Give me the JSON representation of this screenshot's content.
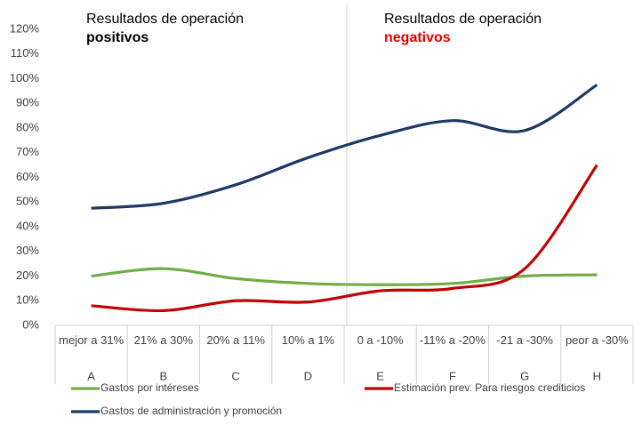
{
  "chart_data": {
    "type": "line",
    "annotations": [
      {
        "text": "Resultados de operación",
        "emphasis": "positivos",
        "emphasis_color": "#000000"
      },
      {
        "text": "Resultados de operación",
        "emphasis": "negativos",
        "emphasis_color": "#e00000"
      }
    ],
    "categories": [
      "mejor a 31%",
      "21% a 30%",
      "20% a 11%",
      "10% a 1%",
      "0 a -10%",
      "-11% a -20%",
      "-21 a -30%",
      "peor a -30%"
    ],
    "groups": [
      "A",
      "B",
      "C",
      "D",
      "E",
      "F",
      "G",
      "H"
    ],
    "series": [
      {
        "name": "Gastos por intéreses",
        "color": "#70ad47",
        "values": [
          20,
          23,
          19,
          17,
          16.5,
          17,
          20,
          20.5
        ]
      },
      {
        "name": "Estimación prev. Para riesgos crediticios",
        "color": "#c00000",
        "values": [
          8,
          6,
          10,
          9.5,
          14,
          15,
          23,
          65
        ]
      },
      {
        "name": "Gastos de administración y promoción",
        "color": "#1f3864",
        "values": [
          47.5,
          49.5,
          57,
          68,
          77,
          83,
          79,
          97.5
        ]
      }
    ],
    "ylim": [
      0,
      120
    ],
    "yticks": [
      {
        "value": 0,
        "label": "0%"
      },
      {
        "value": 10,
        "label": "10%"
      },
      {
        "value": 20,
        "label": "20%"
      },
      {
        "value": 30,
        "label": "30%"
      },
      {
        "value": 40,
        "label": "40%"
      },
      {
        "value": 50,
        "label": "50%"
      },
      {
        "value": 60,
        "label": "60%"
      },
      {
        "value": 70,
        "label": "70%"
      },
      {
        "value": 80,
        "label": "80%"
      },
      {
        "value": 90,
        "label": "90%"
      },
      {
        "value": 100,
        "label": "100%"
      },
      {
        "value": 110,
        "label": "110%"
      },
      {
        "value": 120,
        "label": "120%"
      }
    ],
    "grid": false
  }
}
